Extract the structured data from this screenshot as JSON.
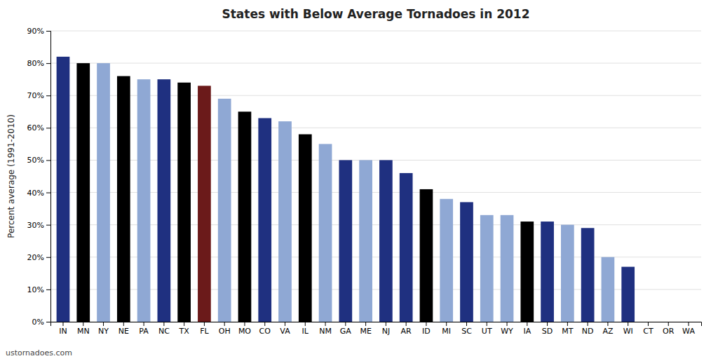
{
  "chart_data": {
    "type": "bar",
    "title": "States with Below Average Tornadoes in 2012",
    "ylabel": "Percent average (1991-2010)",
    "annotations": [
      "ustornadoes.com"
    ],
    "categories": [
      "IN",
      "MN",
      "NY",
      "NE",
      "PA",
      "NC",
      "TX",
      "FL",
      "OH",
      "MO",
      "CO",
      "VA",
      "IL",
      "NM",
      "GA",
      "ME",
      "NJ",
      "AR",
      "ID",
      "MI",
      "SC",
      "UT",
      "WY",
      "IA",
      "SD",
      "MT",
      "ND",
      "AZ",
      "WI",
      "CT",
      "OR",
      "WA"
    ],
    "values": [
      82,
      80,
      80,
      76,
      75,
      75,
      74,
      73,
      69,
      65,
      63,
      62,
      58,
      55,
      50,
      50,
      50,
      46,
      41,
      38,
      37,
      33,
      33,
      31,
      31,
      30,
      29,
      20,
      17,
      0,
      0,
      0
    ],
    "colors": [
      "#1F3080",
      "#000000",
      "#8FA8D4",
      "#000000",
      "#8FA8D4",
      "#1F3080",
      "#000000",
      "#6B1A1A",
      "#8FA8D4",
      "#000000",
      "#1F3080",
      "#8FA8D4",
      "#000000",
      "#8FA8D4",
      "#1F3080",
      "#8FA8D4",
      "#1F3080",
      "#1F3080",
      "#000000",
      "#8FA8D4",
      "#1F3080",
      "#8FA8D4",
      "#8FA8D4",
      "#000000",
      "#1F3080",
      "#8FA8D4",
      "#1F3080",
      "#8FA8D4",
      "#1F3080",
      "#000000",
      "#8FA8D4",
      "#8FA8D4"
    ],
    "ylim": [
      0,
      90
    ],
    "yticks": [
      {
        "value": 0,
        "label": "0%"
      },
      {
        "value": 10,
        "label": "10%"
      },
      {
        "value": 20,
        "label": "20%"
      },
      {
        "value": 30,
        "label": "30%"
      },
      {
        "value": 40,
        "label": "40%"
      },
      {
        "value": 50,
        "label": "50%"
      },
      {
        "value": 60,
        "label": "60%"
      },
      {
        "value": 70,
        "label": "70%"
      },
      {
        "value": 80,
        "label": "80%"
      },
      {
        "value": 90,
        "label": "90%"
      }
    ],
    "grid": true
  }
}
